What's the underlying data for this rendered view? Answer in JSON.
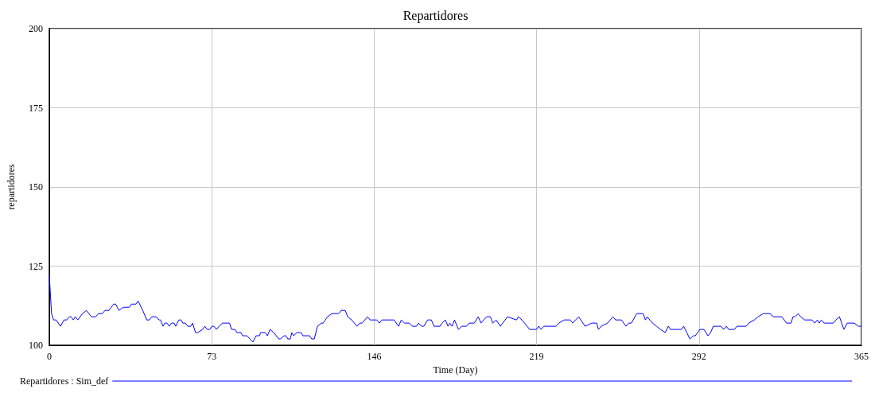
{
  "chart_data": {
    "type": "line",
    "title": "Repartidores",
    "xlabel": "Time (Day)",
    "ylabel": "repartidores",
    "xlim": [
      0,
      365
    ],
    "xticks": [
      0,
      73,
      146,
      219,
      292,
      365
    ],
    "ylim": [
      100,
      200
    ],
    "yticks": [
      100,
      125,
      150,
      175,
      200
    ],
    "grid": true,
    "legend": "bottom left",
    "marker": "none",
    "line_style": "solid",
    "series": [
      {
        "name": "Repartidores : Sim_def",
        "color": "#0000ff",
        "x": [
          0,
          1.0,
          1.9,
          3.1,
          5.0,
          6.6,
          7.8,
          9.0,
          9.8,
          10.8,
          11.7,
          12.8,
          14.9,
          16.7,
          18.9,
          20.9,
          22.1,
          23.9,
          25.0,
          26.8,
          28.9,
          29.8,
          31.3,
          33.3,
          36.0,
          36.9,
          38.9,
          39.9,
          42.0,
          43.8,
          45.0,
          46.1,
          47.9,
          49.4,
          50.0,
          51.1,
          51.9,
          52.9,
          53.9,
          54.9,
          56.1,
          56.8,
          58.2,
          59.2,
          60.0,
          61.2,
          62.2,
          63.6,
          64.4,
          65.7,
          66.7,
          68.9,
          69.9,
          70.9,
          72.1,
          73.1,
          74.0,
          75.1,
          76.3,
          77.8,
          81.0,
          81.9,
          83.5,
          84.3,
          86.1,
          86.9,
          88.8,
          91.5,
          92.9,
          94.4,
          95.0,
          97.0,
          98.0,
          99.2,
          100.9,
          103.1,
          103.9,
          105.5,
          106.3,
          107.2,
          108.3,
          109.0,
          109.8,
          111.3,
          113.2,
          114.0,
          117.0,
          117.9,
          119.1,
          120.5,
          122.3,
          123.1,
          125.0,
          127.0,
          130.0,
          131.2,
          133.0,
          134.1,
          135.9,
          138.3,
          139.5,
          140.6,
          143.0,
          144.2,
          147.2,
          148.4,
          149.5,
          154.9,
          157.0,
          158.2,
          159.6,
          161.8,
          163.2,
          165.0,
          165.9,
          167.3,
          168.3,
          170.0,
          171.7,
          172.9,
          175.6,
          176.5,
          178.0,
          179.2,
          180.0,
          181.0,
          182.1,
          183.9,
          185.4,
          187.5,
          188.7,
          191.0,
          192.8,
          194.0,
          195.2,
          196.6,
          198.2,
          199.3,
          200.8,
          202.7,
          205.9,
          210.0,
          210.8,
          212.4,
          213.6,
          215.9,
          218.9,
          219.9,
          221.0,
          222.2,
          227.8,
          229.0,
          231.4,
          234.1,
          235.3,
          236.5,
          237.9,
          240.8,
          243.8,
          246.0,
          246.8,
          248.0,
          250.9,
          253.3,
          254.5,
          257.1,
          259.2,
          260.4,
          261.6,
          264.0,
          266.9,
          267.9,
          268.7,
          271.1,
          272.9,
          274.7,
          276.8,
          278.2,
          279.2,
          284.1,
          285.1,
          286.5,
          287.9,
          289.5,
          290.3,
          292.4,
          294.2,
          296.0,
          297.2,
          298.4,
          301.9,
          303.1,
          304.3,
          305.3,
          307.9,
          309.0,
          313.2,
          314.4,
          316.8,
          318.5,
          320.9,
          323.9,
          325.4,
          329.2,
          331.3,
          333.4,
          334.2,
          335.1,
          336.6,
          337.7,
          339.5,
          342.8,
          344.0,
          345.2,
          346.0,
          347.0,
          348.2,
          352.3,
          353.5,
          355.1,
          357.1,
          358.6,
          361.8,
          363.6,
          365
        ],
        "values": [
          122,
          110,
          108,
          108,
          106,
          108,
          108,
          109,
          109,
          108,
          109,
          108,
          110,
          111,
          109,
          109,
          110,
          110,
          111,
          111,
          113,
          113,
          111,
          112,
          112,
          113,
          113,
          114,
          111,
          108,
          108,
          109,
          109,
          108,
          108,
          106,
          107,
          107,
          106,
          107,
          107,
          106,
          108,
          108,
          107,
          107,
          106,
          106,
          107,
          104,
          104,
          105,
          106,
          105,
          105,
          106,
          106,
          105,
          106,
          107,
          107,
          105,
          105,
          104,
          104,
          103,
          103,
          101,
          103,
          103,
          104,
          104,
          103,
          105,
          104,
          102,
          102,
          103,
          103,
          102,
          102,
          104,
          103,
          104,
          104,
          103,
          103,
          102,
          102,
          106,
          107,
          107,
          109,
          110,
          110,
          111,
          111,
          109,
          108,
          106,
          107,
          107,
          109,
          108,
          108,
          107,
          108,
          108,
          106,
          108,
          107,
          107,
          106,
          106,
          107,
          106,
          106,
          108,
          108,
          106,
          106,
          107,
          108,
          106,
          107,
          106,
          108,
          105,
          106,
          106,
          107,
          107,
          109,
          107,
          108,
          109,
          109,
          107,
          108,
          106,
          109,
          108,
          109,
          108,
          107,
          105,
          105,
          106,
          105,
          106,
          106,
          107,
          108,
          108,
          107,
          108,
          109,
          106,
          107,
          107,
          105,
          106,
          107,
          109,
          108,
          108,
          106,
          107,
          107,
          110,
          110,
          108,
          109,
          107,
          106,
          105,
          104,
          106,
          105,
          105,
          106,
          104,
          102,
          103,
          103,
          105,
          105,
          103,
          104,
          106,
          106,
          105,
          106,
          105,
          105,
          106,
          106,
          107,
          108,
          109,
          110,
          110,
          109,
          109,
          107,
          107,
          109,
          109,
          110,
          109,
          108,
          108,
          107,
          108,
          107,
          108,
          107,
          107,
          108,
          109,
          105,
          107,
          107,
          106,
          106
        ]
      }
    ]
  }
}
